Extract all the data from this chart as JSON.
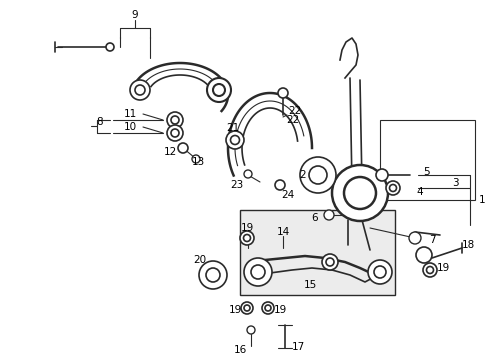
{
  "background_color": "#ffffff",
  "line_color": "#2a2a2a",
  "label_color": "#000000",
  "fig_w": 4.89,
  "fig_h": 3.6,
  "dpi": 100
}
